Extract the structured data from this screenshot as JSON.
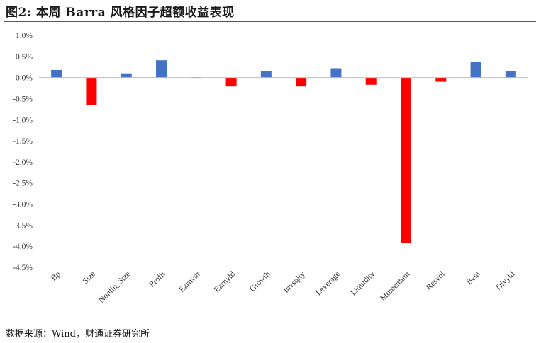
{
  "header": {
    "title": "图2: 本周 Barra 风格因子超额收益表现"
  },
  "footer": {
    "source": "数据来源：Wind，财通证券研究所"
  },
  "colors": {
    "positive": "#4472c4",
    "negative": "#ff0000",
    "axis": "#bfbfbf"
  },
  "chart_data": {
    "type": "bar",
    "title": "",
    "xlabel": "",
    "ylabel": "",
    "categories": [
      "Bp",
      "Size",
      "Nonlin_Size",
      "Profit",
      "Earnvar",
      "Earnyld",
      "Growth",
      "Invsqlty",
      "Leverage",
      "Liquidity",
      "Momentum",
      "Resvol",
      "Beta",
      "Divyld"
    ],
    "values": [
      0.18,
      -0.65,
      0.1,
      0.41,
      0.01,
      -0.21,
      0.15,
      -0.21,
      0.22,
      -0.17,
      -3.92,
      -0.1,
      0.38,
      0.15
    ],
    "ylim": [
      -4.5,
      1.0
    ],
    "yticks": [
      "1.0%",
      "0.5%",
      "0.0%",
      "-0.5%",
      "-1.0%",
      "-1.5%",
      "-2.0%",
      "-2.5%",
      "-3.0%",
      "-3.5%",
      "-4.0%",
      "-4.5%"
    ],
    "ytick_values": [
      1.0,
      0.5,
      0.0,
      -0.5,
      -1.0,
      -1.5,
      -2.0,
      -2.5,
      -3.0,
      -3.5,
      -4.0,
      -4.5
    ],
    "grid": false,
    "legend": "none"
  }
}
